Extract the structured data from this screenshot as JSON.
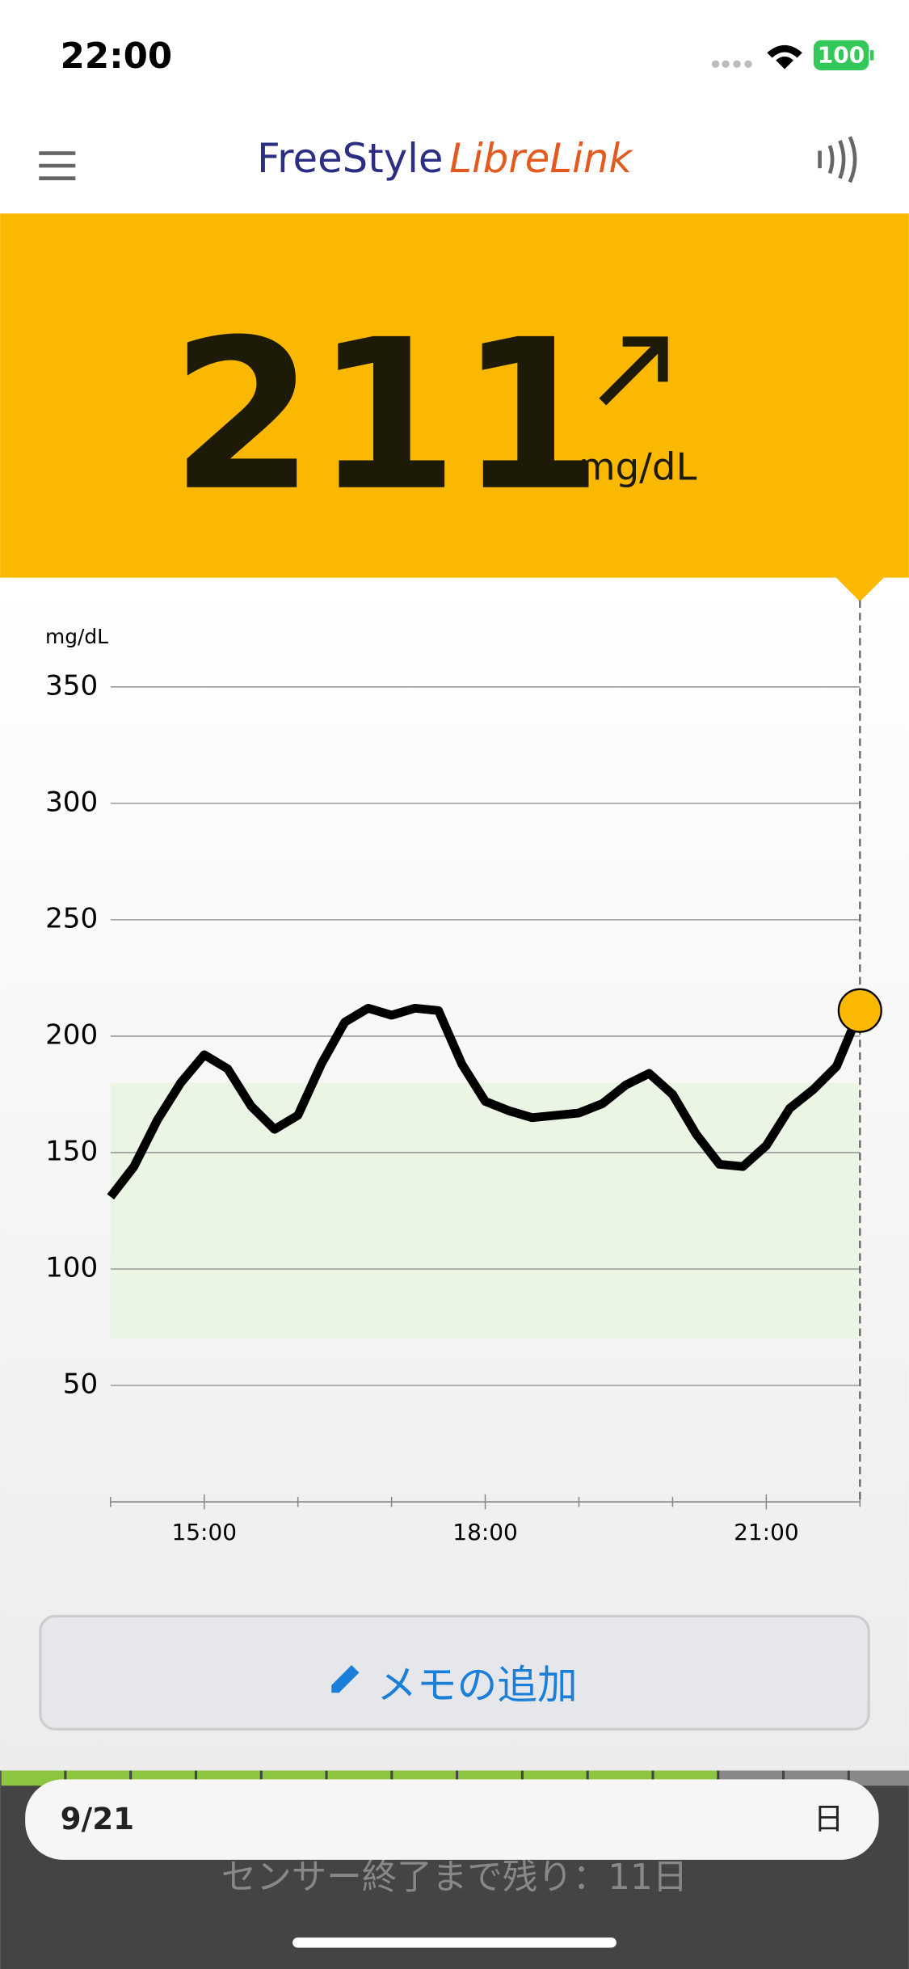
{
  "status_bar": {
    "time": "22:00",
    "battery": "100"
  },
  "header": {
    "brand_1": "FreeStyle",
    "brand_2": "LibreLink"
  },
  "reading": {
    "value": "211",
    "unit": "mg/dL"
  },
  "chart_data": {
    "type": "line",
    "y_label": "mg/dL",
    "ylim": [
      0,
      350
    ],
    "yticks": [
      50,
      100,
      150,
      200,
      250,
      300,
      350
    ],
    "xlim": [
      14,
      22
    ],
    "xticks": [
      {
        "value": 15,
        "label": "15:00"
      },
      {
        "value": 18,
        "label": "18:00"
      },
      {
        "value": 21,
        "label": "21:00"
      }
    ],
    "xminorticks": [
      14,
      16,
      17,
      19,
      20,
      22
    ],
    "target_range": [
      70,
      180
    ],
    "target_color": "#ebf5e3",
    "grid": true,
    "series": [
      {
        "color": "#000000",
        "x": [
          14,
          14.25,
          14.5,
          14.75,
          15,
          15.25,
          15.5,
          15.75,
          16,
          16.25,
          16.5,
          16.75,
          17,
          17.25,
          17.5,
          17.75,
          18,
          18.25,
          18.5,
          18.75,
          19,
          19.25,
          19.5,
          19.75,
          20,
          20.25,
          20.5,
          20.75,
          21,
          21.25,
          21.5,
          21.75,
          22
        ],
        "values": [
          131,
          144,
          164,
          180,
          192,
          186,
          170,
          160,
          166,
          188,
          206,
          212,
          209,
          212,
          211,
          188,
          172,
          168,
          165,
          166,
          167,
          171,
          179,
          184,
          175,
          158,
          145,
          144,
          153,
          169,
          177,
          187,
          211
        ]
      }
    ],
    "current_color": "#fbb800"
  },
  "memo_button": {
    "label": "メモの追加"
  },
  "footer": {
    "date": "9/21",
    "period": "日",
    "sensor": "センサー終了まで残り：11日"
  }
}
